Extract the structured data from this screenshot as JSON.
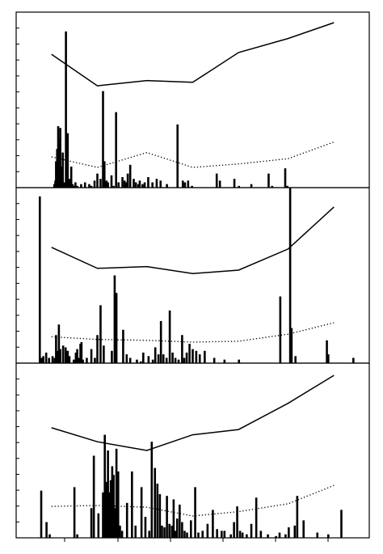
{
  "chart_data": [
    {
      "type": "bar",
      "title": "",
      "xlabel": "",
      "ylabel": "",
      "xlim": [
        0,
        100
      ],
      "ylim": [
        0,
        10
      ],
      "grid": false,
      "series": [
        {
          "style": "bars",
          "x": [
            10.8,
            11.1,
            11.3,
            11.6,
            11.9,
            12.2,
            12.5,
            12.8,
            13.2,
            13.6,
            14.1,
            14.6,
            15.1,
            15.6,
            16.0,
            16.3,
            16.8,
            17.3,
            18.4,
            19.5,
            20.7,
            21.3,
            22.2,
            23.0,
            23.9,
            24.6,
            25.0,
            25.3,
            25.6,
            26.0,
            27.0,
            27.6,
            28.3,
            29.0,
            30.1,
            30.7,
            31.2,
            31.6,
            32.3,
            33.3,
            33.9,
            34.6,
            35.0,
            35.8,
            36.4,
            37.4,
            38.6,
            39.8,
            40.9,
            42.7,
            45.7,
            47.2,
            47.8,
            48.7,
            49.8,
            56.8,
            57.7,
            61.8,
            63.1,
            66.6,
            71.5,
            72.5,
            76.2,
            76.8
          ],
          "values": [
            0.2,
            0.4,
            1.5,
            2.2,
            3.5,
            2.8,
            3.4,
            1.2,
            2.0,
            0.3,
            8.9,
            3.1,
            0.5,
            1.2,
            0.2,
            0.1,
            0.3,
            0.1,
            0.2,
            0.3,
            0.2,
            0.1,
            0.4,
            0.8,
            0.5,
            5.5,
            1.5,
            0.3,
            0.4,
            0.3,
            0.7,
            0.1,
            4.3,
            0.3,
            0.6,
            0.4,
            0.3,
            0.8,
            1.3,
            0.5,
            0.3,
            0.2,
            0.4,
            0.2,
            0.3,
            0.6,
            0.3,
            0.5,
            0.4,
            0.2,
            3.6,
            0.4,
            0.3,
            0.4,
            0.1,
            0.8,
            0.4,
            0.5,
            0.1,
            0.2,
            0.8,
            0.1,
            1.1,
            0.1
          ]
        },
        {
          "style": "solid",
          "x": [
            10,
            23,
            37,
            50,
            63,
            77,
            90
          ],
          "values": [
            7.6,
            5.8,
            6.1,
            6.0,
            7.7,
            8.5,
            9.4
          ]
        },
        {
          "style": "dotted",
          "x": [
            10,
            23,
            37,
            50,
            63,
            77,
            90
          ],
          "values": [
            1.75,
            1.15,
            2.0,
            1.15,
            1.35,
            1.65,
            2.6
          ]
        }
      ]
    },
    {
      "type": "bar",
      "title": "",
      "xlabel": "",
      "ylabel": "",
      "xlim": [
        0,
        100
      ],
      "ylim": [
        0,
        10
      ],
      "grid": false,
      "series": [
        {
          "style": "bars",
          "x": [
            6.7,
            7.2,
            7.7,
            8.5,
            9.3,
            10.3,
            10.9,
            11.3,
            11.7,
            12.1,
            12.5,
            13.3,
            14.0,
            14.6,
            15.1,
            16.3,
            16.9,
            17.3,
            17.6,
            17.9,
            18.2,
            18.5,
            18.9,
            20.0,
            21.3,
            22.3,
            23.0,
            23.9,
            24.8,
            27.1,
            27.9,
            28.4,
            30.3,
            31.3,
            32.3,
            34.2,
            35.3,
            36.0,
            37.5,
            38.7,
            39.4,
            40.3,
            41.0,
            41.7,
            42.6,
            43.5,
            44.3,
            45.1,
            46.0,
            47.0,
            47.6,
            48.3,
            49.1,
            50.0,
            51.0,
            52.0,
            53.4,
            56.1,
            59.0,
            63.1,
            74.8,
            77.6,
            78.0,
            79.1,
            88.0,
            88.4,
            95.5
          ],
          "values": [
            9.5,
            0.3,
            0.4,
            0.6,
            0.3,
            0.4,
            0.3,
            1.6,
            0.7,
            2.2,
            0.8,
            1.0,
            0.9,
            0.7,
            0.4,
            0.2,
            0.6,
            0.8,
            0.3,
            0.3,
            1.1,
            1.2,
            0.2,
            0.3,
            0.8,
            0.3,
            1.6,
            3.3,
            1.0,
            0.7,
            5.0,
            4.0,
            1.9,
            0.5,
            0.3,
            0.2,
            0.1,
            0.6,
            0.4,
            0.2,
            0.9,
            0.5,
            2.4,
            0.5,
            0.3,
            3.0,
            0.6,
            0.3,
            0.2,
            1.6,
            0.3,
            0.6,
            1.1,
            0.8,
            0.7,
            0.5,
            0.7,
            0.3,
            0.2,
            0.2,
            3.8,
            10.0,
            2.0,
            0.4,
            1.3,
            0.5,
            0.3
          ]
        },
        {
          "style": "solid",
          "x": [
            10,
            23,
            37,
            50,
            63,
            77,
            90
          ],
          "values": [
            6.6,
            5.4,
            5.5,
            5.1,
            5.3,
            6.5,
            8.9
          ]
        },
        {
          "style": "dotted",
          "x": [
            10,
            23,
            37,
            50,
            63,
            77,
            90
          ],
          "values": [
            1.5,
            1.35,
            1.3,
            1.2,
            1.25,
            1.65,
            2.3
          ]
        }
      ]
    },
    {
      "type": "bar",
      "title": "",
      "xlabel": "",
      "ylabel": "",
      "xlim": [
        0,
        100
      ],
      "ylim": [
        0,
        10
      ],
      "grid": false,
      "series": [
        {
          "style": "bars",
          "x": [
            7.1,
            8.6,
            9.5,
            16.5,
            17.3,
            21.3,
            22.0,
            23.3,
            24.6,
            25.1,
            25.6,
            26.0,
            26.4,
            26.8,
            27.2,
            27.6,
            28.0,
            28.4,
            28.9,
            29.4,
            30.0,
            31.4,
            32.8,
            33.8,
            35.5,
            36.6,
            37.7,
            38.4,
            39.3,
            40.0,
            40.7,
            41.3,
            42.0,
            42.7,
            43.4,
            44.1,
            44.6,
            45.1,
            45.6,
            46.3,
            47.0,
            47.7,
            48.4,
            49.5,
            50.7,
            51.6,
            52.8,
            54.2,
            55.7,
            56.9,
            58.2,
            59.0,
            60.8,
            61.7,
            62.6,
            63.4,
            64.1,
            65.3,
            66.6,
            68.0,
            69.3,
            71.3,
            73.6,
            74.6,
            76.3,
            77.2,
            78.9,
            79.6,
            81.4,
            85.3,
            88.4,
            92.1
          ],
          "values": [
            2.7,
            0.9,
            0.2,
            2.9,
            0.2,
            1.7,
            4.7,
            1.4,
            2.6,
            5.9,
            3.2,
            5.0,
            2.6,
            3.3,
            4.1,
            3.6,
            1.7,
            5.1,
            3.8,
            0.7,
            0.4,
            2.0,
            3.8,
            0.7,
            2.9,
            1.2,
            0.4,
            5.5,
            4.0,
            3.1,
            2.5,
            0.7,
            0.6,
            2.4,
            0.8,
            0.7,
            2.2,
            0.4,
            1.1,
            1.9,
            0.9,
            0.4,
            0.3,
            1.0,
            2.9,
            0.3,
            0.4,
            0.8,
            1.6,
            0.5,
            0.4,
            0.4,
            0.2,
            0.9,
            1.8,
            0.4,
            0.3,
            0.2,
            0.8,
            2.3,
            0.4,
            0.2,
            0.1,
            0.3,
            0.2,
            0.6,
            0.7,
            2.4,
            1.0,
            0.3,
            0.2,
            1.6
          ]
        },
        {
          "style": "solid",
          "x": [
            10,
            23,
            37,
            50,
            63,
            77,
            90
          ],
          "values": [
            6.3,
            5.5,
            5.0,
            5.9,
            6.2,
            7.7,
            9.3
          ]
        },
        {
          "style": "dotted",
          "x": [
            10,
            23,
            37,
            50,
            63,
            77,
            90
          ],
          "values": [
            1.8,
            1.85,
            1.75,
            1.25,
            1.5,
            1.95,
            3.0
          ]
        }
      ]
    }
  ]
}
